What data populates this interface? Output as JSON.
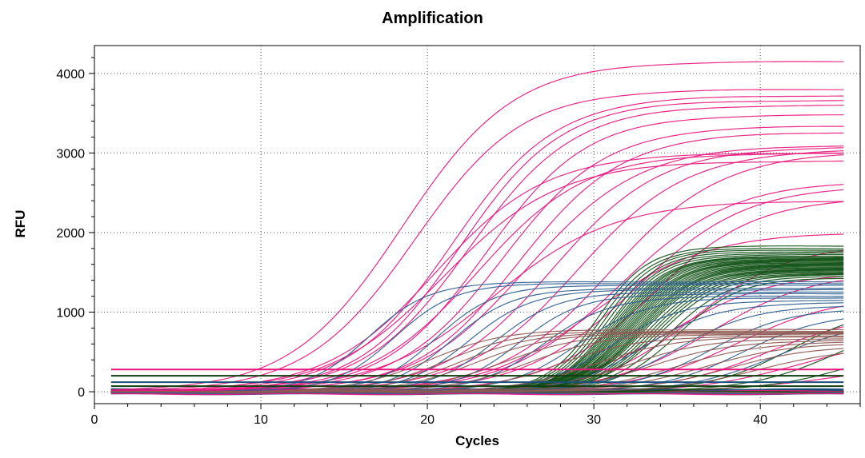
{
  "chart_data": {
    "type": "line",
    "title": "Amplification",
    "xlabel": "Cycles",
    "ylabel": "RFU",
    "xlim": [
      0,
      46
    ],
    "ylim": [
      -150,
      4350
    ],
    "x_ticks": [
      0,
      10,
      20,
      30,
      40
    ],
    "y_ticks": [
      0,
      1000,
      2000,
      3000,
      4000
    ],
    "grid": "dotted",
    "legend": "none",
    "cycles": {
      "start": 1,
      "end": 45
    },
    "thresholds": [
      {
        "value": 280,
        "color": "#e8147a"
      },
      {
        "value": 200,
        "color": "#0f3d0f"
      },
      {
        "value": 120,
        "color": "#1a4f7a"
      },
      {
        "value": 70,
        "color": "#0f3d0f"
      }
    ],
    "series_groups": [
      {
        "group": "pink",
        "color": "#e8177f",
        "curves": [
          [
            18.5,
            4150,
            0.3
          ],
          [
            19.2,
            3800,
            0.31
          ],
          [
            21.5,
            3720,
            0.32
          ],
          [
            22.0,
            3660,
            0.33
          ],
          [
            22.5,
            3600,
            0.32
          ],
          [
            23.5,
            3480,
            0.33
          ],
          [
            24.5,
            3340,
            0.32
          ],
          [
            25.5,
            3260,
            0.32
          ],
          [
            26.0,
            3100,
            0.3
          ],
          [
            27.5,
            3080,
            0.31
          ],
          [
            29.0,
            3050,
            0.3
          ],
          [
            31.0,
            3020,
            0.3
          ],
          [
            31.5,
            2650,
            0.3
          ],
          [
            32.5,
            2600,
            0.3
          ],
          [
            33.5,
            2450,
            0.32
          ],
          [
            36.0,
            1850,
            0.35
          ],
          [
            37.0,
            1500,
            0.33
          ],
          [
            38.5,
            1200,
            0.33
          ],
          [
            40.5,
            1000,
            0.33
          ],
          [
            42.5,
            700,
            0.33
          ],
          [
            24.0,
            2400,
            0.28
          ],
          [
            20.5,
            3000,
            0.3
          ],
          [
            21.0,
            2900,
            0.29
          ],
          [
            23.0,
            3000,
            0.31
          ],
          [
            30.0,
            2000,
            0.3
          ],
          [
            34.5,
            1500,
            0.32
          ],
          [
            45.0,
            400,
            0.3
          ]
        ]
      },
      {
        "group": "dark-green",
        "color": "#0d4f12",
        "curves": [
          [
            30.2,
            1830,
            0.65
          ],
          [
            30.4,
            1800,
            0.65
          ],
          [
            30.6,
            1780,
            0.65
          ],
          [
            30.8,
            1760,
            0.64
          ],
          [
            31.0,
            1740,
            0.64
          ],
          [
            31.1,
            1720,
            0.64
          ],
          [
            31.2,
            1700,
            0.63
          ],
          [
            31.3,
            1690,
            0.63
          ],
          [
            31.4,
            1680,
            0.63
          ],
          [
            31.5,
            1670,
            0.62
          ],
          [
            31.6,
            1660,
            0.62
          ],
          [
            31.7,
            1650,
            0.62
          ],
          [
            31.8,
            1640,
            0.61
          ],
          [
            31.9,
            1630,
            0.61
          ],
          [
            32.0,
            1620,
            0.61
          ],
          [
            32.1,
            1610,
            0.6
          ],
          [
            32.2,
            1600,
            0.6
          ],
          [
            32.3,
            1590,
            0.6
          ],
          [
            32.4,
            1580,
            0.6
          ],
          [
            32.5,
            1570,
            0.59
          ],
          [
            32.6,
            1560,
            0.59
          ],
          [
            32.7,
            1550,
            0.59
          ],
          [
            32.8,
            1540,
            0.58
          ],
          [
            32.9,
            1530,
            0.58
          ],
          [
            33.0,
            1520,
            0.58
          ],
          [
            33.2,
            1510,
            0.57
          ],
          [
            33.4,
            1500,
            0.57
          ],
          [
            33.6,
            1490,
            0.56
          ],
          [
            33.8,
            1480,
            0.56
          ],
          [
            34.0,
            1470,
            0.55
          ],
          [
            34.5,
            1450,
            0.55
          ],
          [
            35.0,
            1430,
            0.54
          ],
          [
            42.0,
            1100,
            0.4
          ],
          [
            44.5,
            950,
            0.38
          ],
          [
            46.0,
            700,
            0.35
          ]
        ]
      },
      {
        "group": "blue",
        "color": "#2f5f8f",
        "curves": [
          [
            16.5,
            1380,
            0.55
          ],
          [
            18.0,
            1360,
            0.55
          ],
          [
            20.5,
            1340,
            0.55
          ],
          [
            21.5,
            1300,
            0.54
          ],
          [
            22.5,
            1280,
            0.53
          ],
          [
            24.0,
            1250,
            0.52
          ],
          [
            25.5,
            1230,
            0.52
          ],
          [
            27.0,
            1200,
            0.5
          ],
          [
            29.0,
            1180,
            0.48
          ],
          [
            31.0,
            1150,
            0.46
          ],
          [
            33.0,
            1120,
            0.45
          ],
          [
            35.0,
            1080,
            0.44
          ],
          [
            37.0,
            1050,
            0.42
          ],
          [
            39.0,
            1000,
            0.4
          ],
          [
            41.0,
            900,
            0.38
          ]
        ]
      },
      {
        "group": "brown",
        "color": "#8f5a52",
        "curves": [
          [
            20.0,
            780,
            0.45
          ],
          [
            21.0,
            760,
            0.45
          ],
          [
            22.0,
            750,
            0.44
          ],
          [
            23.0,
            740,
            0.44
          ],
          [
            24.5,
            730,
            0.43
          ],
          [
            26.0,
            720,
            0.43
          ],
          [
            28.0,
            700,
            0.42
          ],
          [
            30.0,
            690,
            0.42
          ],
          [
            32.0,
            670,
            0.41
          ],
          [
            33.5,
            650,
            0.4
          ],
          [
            35.0,
            630,
            0.4
          ],
          [
            36.5,
            610,
            0.39
          ],
          [
            38.0,
            580,
            0.38
          ],
          [
            40.0,
            560,
            0.37
          ]
        ]
      }
    ]
  }
}
